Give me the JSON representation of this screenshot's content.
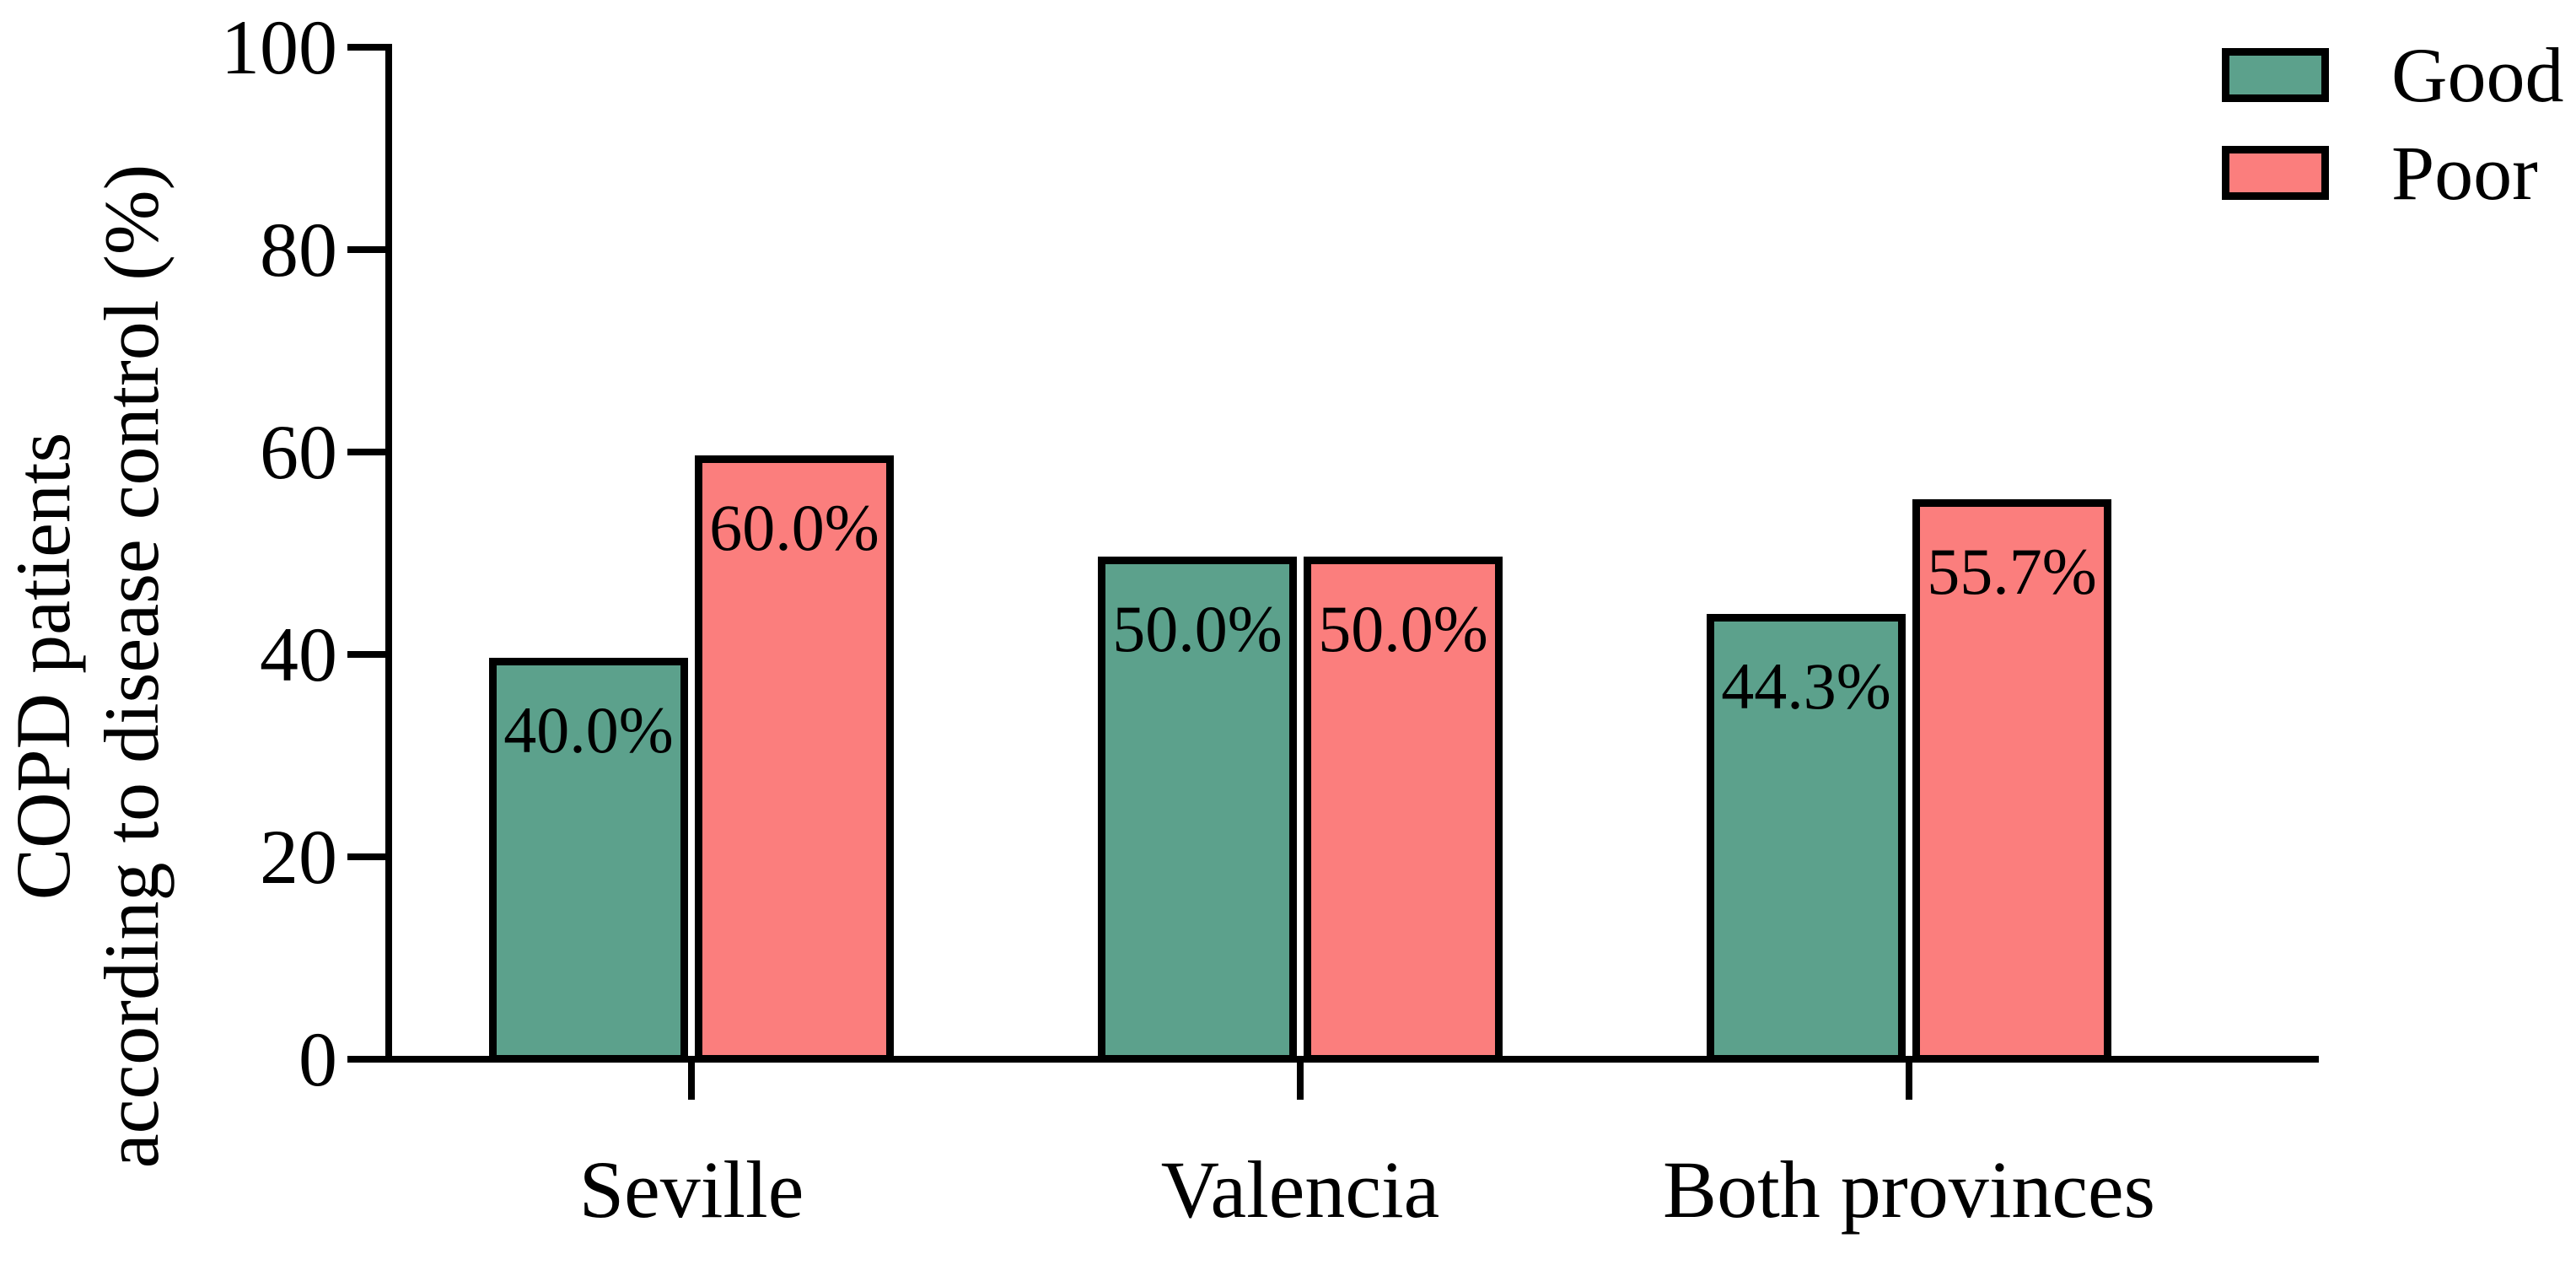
{
  "chart_data": {
    "type": "bar",
    "title": "",
    "categories": [
      "Seville",
      "Valencia",
      "Both provinces"
    ],
    "series": [
      {
        "name": "Good",
        "color": "#5CA18C",
        "values": [
          40.0,
          50.0,
          44.3
        ]
      },
      {
        "name": "Poor",
        "color": "#FB7E7D",
        "values": [
          60.0,
          50.0,
          55.7
        ]
      }
    ],
    "value_labels": [
      [
        "40.0%",
        "60.0%"
      ],
      [
        "50.0%",
        "50.0%"
      ],
      [
        "44.3%",
        "55.7%"
      ]
    ],
    "ylabel_lines": [
      "COPD patients",
      "according to disease control (%)"
    ],
    "ylabel": "COPD patients according to disease control (%)",
    "xlabel": "",
    "yticks": [
      "0",
      "20",
      "40",
      "60",
      "80",
      "100"
    ],
    "ylim": [
      0,
      100
    ],
    "grid": false,
    "background": "#ffffff",
    "axis_color": "#000000",
    "legend": {
      "position": "top-right",
      "items": [
        {
          "label": "Good",
          "color": "#5CA18C"
        },
        {
          "label": "Poor",
          "color": "#FB7E7D"
        }
      ]
    }
  }
}
